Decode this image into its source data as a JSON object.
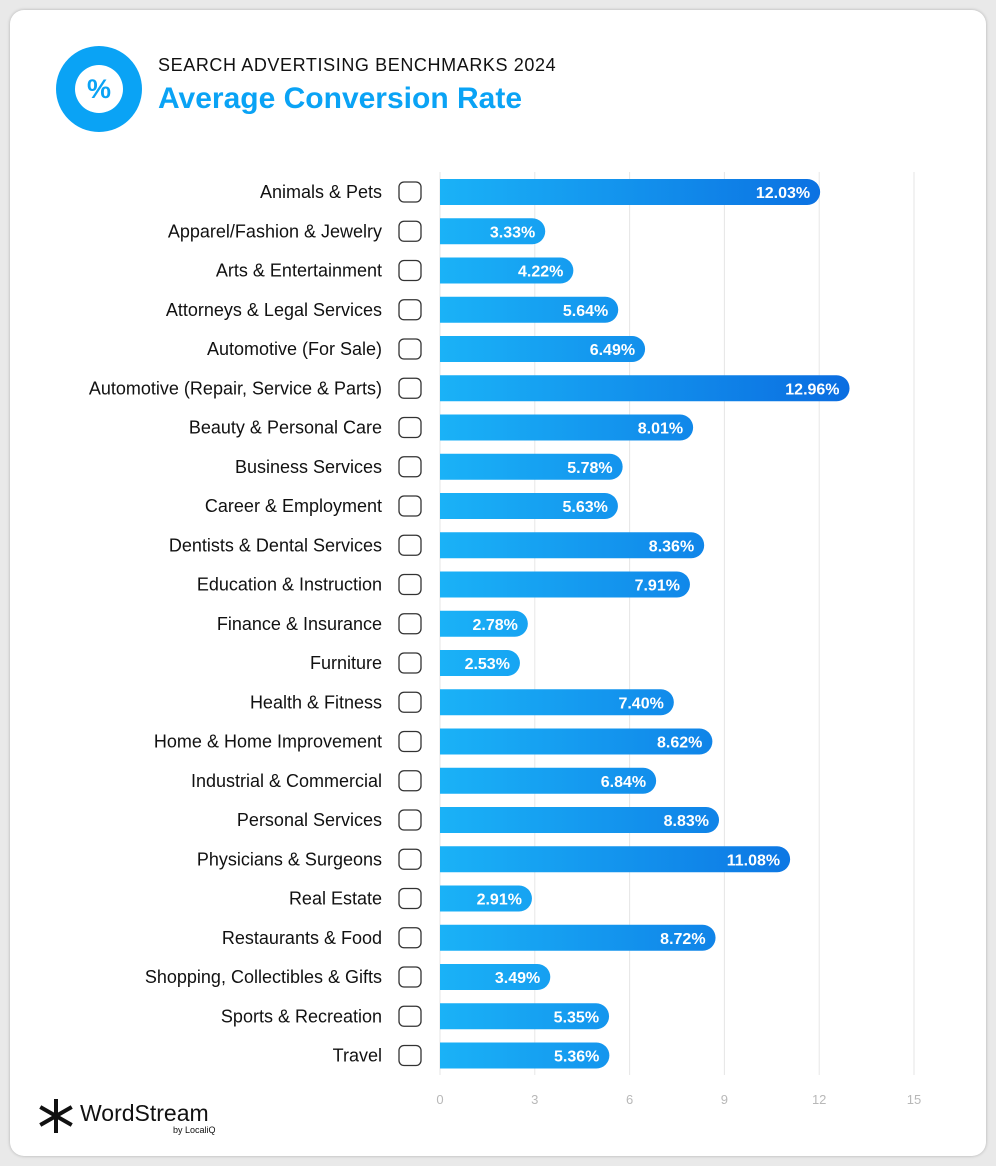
{
  "header": {
    "subtitle": "SEARCH ADVERTISING BENCHMARKS 2024",
    "badge_symbol": "%",
    "accent_color": "#0aa3f5"
  },
  "chart_data": {
    "type": "bar",
    "orientation": "horizontal",
    "title": "Average Conversion Rate",
    "xlabel": "",
    "ylabel": "",
    "xlim": [
      0,
      15
    ],
    "xticks": [
      0,
      3,
      6,
      9,
      12,
      15
    ],
    "grid": true,
    "value_suffix": "%",
    "categories": [
      "Animals & Pets",
      "Apparel/Fashion & Jewelry",
      "Arts & Entertainment",
      "Attorneys & Legal Services",
      "Automotive (For Sale)",
      "Automotive (Repair, Service & Parts)",
      "Beauty & Personal Care",
      "Business Services",
      "Career & Employment",
      "Dentists & Dental Services",
      "Education & Instruction",
      "Finance & Insurance",
      "Furniture",
      "Health & Fitness",
      "Home & Home Improvement",
      "Industrial & Commercial",
      "Personal Services",
      "Physicians & Surgeons",
      "Real Estate",
      "Restaurants & Food",
      "Shopping, Collectibles & Gifts",
      "Sports & Recreation",
      "Travel"
    ],
    "values": [
      12.03,
      3.33,
      4.22,
      5.64,
      6.49,
      12.96,
      8.01,
      5.78,
      5.63,
      8.36,
      7.91,
      2.78,
      2.53,
      7.4,
      8.62,
      6.84,
      8.83,
      11.08,
      2.91,
      8.72,
      3.49,
      5.35,
      5.36
    ],
    "icons": [
      "paw-icon",
      "tshirt-icon",
      "picture-icon",
      "gavel-icon",
      "price-tag-icon",
      "car-icon",
      "comb-icon",
      "newspaper-icon",
      "briefcase-icon",
      "tooth-icon",
      "graduation-cap-icon",
      "piggy-bank-icon",
      "armchair-icon",
      "heart-icon",
      "house-icon",
      "factory-icon",
      "hand-heart-icon",
      "medical-cross-icon",
      "storefront-icon",
      "fork-knife-icon",
      "bow-icon",
      "ball-icon",
      "airplane-icon"
    ],
    "bar_colors": [
      "#1ab2f7",
      "#0a6be0"
    ]
  },
  "logo": {
    "name": "WordStream",
    "sub": "by LocaliQ"
  }
}
